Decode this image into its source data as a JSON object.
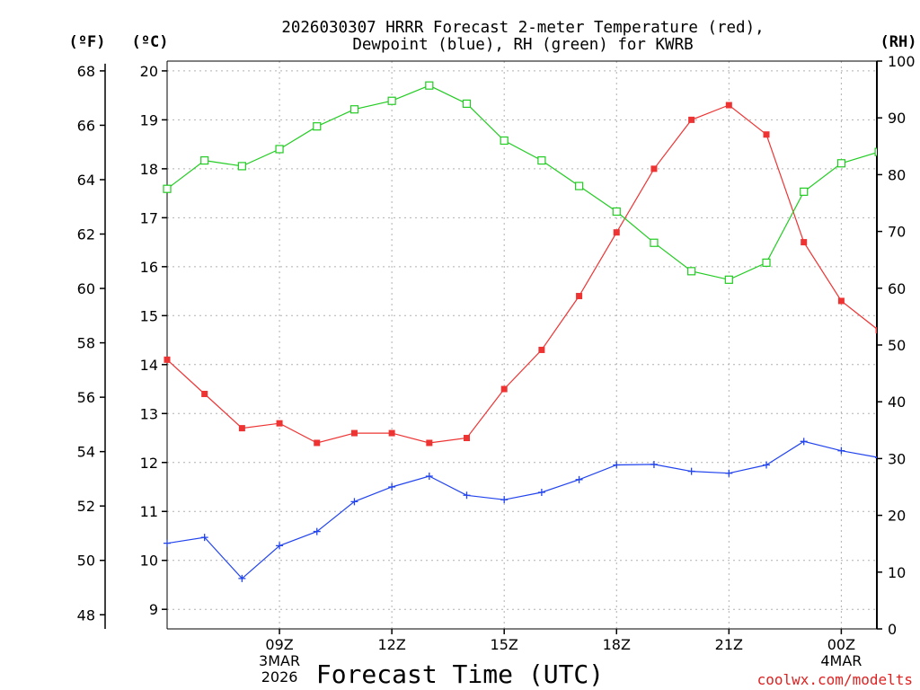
{
  "chart_data": {
    "type": "line",
    "title_lines": [
      "2026030307 HRRR Forecast 2-meter Temperature (red),",
      "Dewpoint (blue), RH (green) for KWRB"
    ],
    "xlabel": "Forecast Time (UTC)",
    "left_unit_f": "(ºF)",
    "left_unit_c": "(ºC)",
    "right_unit": "(RH)",
    "credit": "coolwx.com/modelts",
    "x_hours": [
      6,
      7,
      8,
      9,
      10,
      11,
      12,
      13,
      14,
      15,
      16,
      17,
      18,
      19,
      20,
      21,
      22,
      23,
      24,
      25
    ],
    "xlim": [
      6,
      24.95
    ],
    "x_ticks": [
      {
        "hour": 9,
        "label": "09Z",
        "sub1": "3MAR",
        "sub2": "2026"
      },
      {
        "hour": 12,
        "label": "12Z",
        "sub1": "",
        "sub2": ""
      },
      {
        "hour": 15,
        "label": "15Z",
        "sub1": "",
        "sub2": ""
      },
      {
        "hour": 18,
        "label": "18Z",
        "sub1": "",
        "sub2": ""
      },
      {
        "hour": 21,
        "label": "21Z",
        "sub1": "",
        "sub2": ""
      },
      {
        "hour": 24,
        "label": "00Z",
        "sub1": "4MAR",
        "sub2": ""
      }
    ],
    "c_axis": {
      "min": 8.6,
      "max": 20.2,
      "ticks": [
        9,
        10,
        11,
        12,
        13,
        14,
        15,
        16,
        17,
        18,
        19,
        20
      ]
    },
    "f_axis": {
      "ticks": [
        48,
        50,
        52,
        54,
        56,
        58,
        60,
        62,
        64,
        66,
        68
      ]
    },
    "rh_axis": {
      "min": 0,
      "max": 100,
      "ticks": [
        0,
        10,
        20,
        30,
        40,
        50,
        60,
        70,
        80,
        90,
        100
      ]
    },
    "series": [
      {
        "name": "Temperature",
        "color": "#ee3333",
        "marker": "filled-square",
        "axis": "C",
        "values": [
          14.1,
          13.4,
          12.7,
          12.8,
          12.4,
          12.6,
          12.6,
          12.4,
          12.5,
          13.5,
          14.3,
          15.4,
          16.7,
          18.0,
          19.0,
          19.3,
          18.7,
          16.5,
          15.3,
          14.7
        ]
      },
      {
        "name": "Dewpoint",
        "color": "#2244ee",
        "marker": "plus",
        "axis": "C",
        "values": [
          10.35,
          10.47,
          9.63,
          10.3,
          10.59,
          11.2,
          11.5,
          11.72,
          11.33,
          11.24,
          11.39,
          11.65,
          11.95,
          11.96,
          11.82,
          11.78,
          11.95,
          12.43,
          12.24,
          12.1
        ]
      },
      {
        "name": "RH",
        "color": "#22cc22",
        "marker": "open-square",
        "axis": "RH",
        "values": [
          77.5,
          82.5,
          81.5,
          84.5,
          88.5,
          91.5,
          93.0,
          95.7,
          92.5,
          86.0,
          82.5,
          78.0,
          73.5,
          68.0,
          63.0,
          61.5,
          64.5,
          77.0,
          82.0,
          84.0
        ]
      }
    ]
  }
}
